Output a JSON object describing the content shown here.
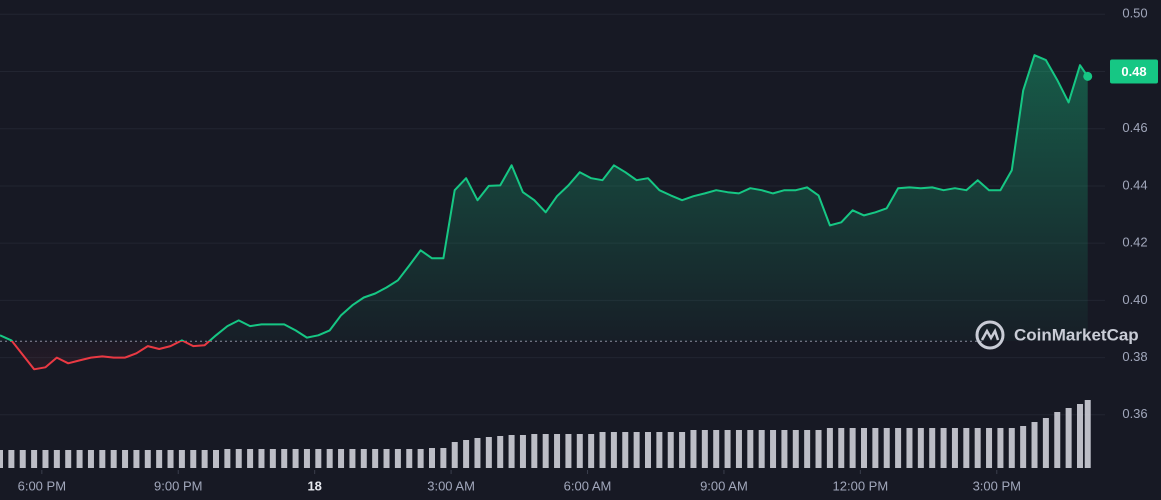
{
  "chart_data": {
    "type": "line",
    "x": [
      17.08,
      17.33,
      17.58,
      17.83,
      18.08,
      18.33,
      18.58,
      18.83,
      19.08,
      19.33,
      19.58,
      19.83,
      20.08,
      20.33,
      20.58,
      20.83,
      21.08,
      21.33,
      21.58,
      21.83,
      22.08,
      22.33,
      22.58,
      22.83,
      23.08,
      23.33,
      23.58,
      23.83,
      24.08,
      24.33,
      24.58,
      24.83,
      25.08,
      25.33,
      25.58,
      25.83,
      26.08,
      26.33,
      26.58,
      26.83,
      27.08,
      27.33,
      27.58,
      27.83,
      28.08,
      28.33,
      28.58,
      28.83,
      29.08,
      29.33,
      29.58,
      29.83,
      30.08,
      30.33,
      30.58,
      30.83,
      31.08,
      31.33,
      31.58,
      31.83,
      32.08,
      32.33,
      32.58,
      32.83,
      33.08,
      33.33,
      33.58,
      33.83,
      34.08,
      34.33,
      34.58,
      34.83,
      35.08,
      35.33,
      35.58,
      35.83,
      36.08,
      36.33,
      36.58,
      36.83,
      37.08,
      37.33,
      37.58,
      37.83,
      38.08,
      38.33,
      38.58,
      38.83,
      39.08,
      39.33,
      39.58,
      39.83,
      40.08,
      40.33,
      40.58,
      40.83,
      41.0
    ],
    "series": [
      {
        "name": "Price",
        "color": "#16c784",
        "color_below": "#ea3943",
        "values": [
          0.3878,
          0.386,
          0.381,
          0.3759,
          0.3766,
          0.38,
          0.378,
          0.379,
          0.38,
          0.3804,
          0.38,
          0.38,
          0.3815,
          0.384,
          0.383,
          0.384,
          0.386,
          0.384,
          0.3843,
          0.3878,
          0.391,
          0.393,
          0.391,
          0.3916,
          0.3916,
          0.3916,
          0.3895,
          0.387,
          0.3878,
          0.3895,
          0.3948,
          0.3983,
          0.401,
          0.4024,
          0.4045,
          0.407,
          0.4122,
          0.4175,
          0.4147,
          0.4147,
          0.4385,
          0.4427,
          0.435,
          0.44,
          0.4402,
          0.4472,
          0.4378,
          0.435,
          0.4308,
          0.4364,
          0.4402,
          0.4448,
          0.4427,
          0.442,
          0.4472,
          0.4448,
          0.442,
          0.4427,
          0.4385,
          0.4367,
          0.435,
          0.4364,
          0.4374,
          0.4385,
          0.4378,
          0.4374,
          0.4392,
          0.4385,
          0.4374,
          0.4385,
          0.4385,
          0.4395,
          0.4367,
          0.4262,
          0.4273,
          0.4315,
          0.4297,
          0.4308,
          0.4322,
          0.4392,
          0.4395,
          0.4392,
          0.4395,
          0.4385,
          0.4392,
          0.4385,
          0.442,
          0.4385,
          0.4385,
          0.4455,
          0.4734,
          0.4857,
          0.484,
          0.477,
          0.4692,
          0.4822,
          0.4783
        ]
      },
      {
        "name": "Volume",
        "color": "#d9dbe3",
        "values": [
          18,
          18,
          18,
          18,
          18,
          18,
          18,
          18,
          18,
          18,
          18,
          18,
          18,
          18,
          18,
          18,
          18,
          18,
          18,
          18,
          19,
          19,
          19,
          19,
          19,
          19,
          19,
          19,
          19,
          19,
          19,
          19,
          19,
          19,
          19,
          19,
          19,
          19,
          20,
          20,
          26,
          28,
          30,
          31,
          32,
          33,
          33,
          34,
          34,
          34,
          34,
          34,
          34,
          36,
          36,
          36,
          36,
          36,
          36,
          36,
          36,
          38,
          38,
          38,
          38,
          38,
          38,
          38,
          38,
          38,
          38,
          38,
          38,
          40,
          40,
          40,
          40,
          40,
          40,
          40,
          40,
          40,
          40,
          40,
          40,
          40,
          40,
          40,
          40,
          40,
          42,
          46,
          50,
          56,
          60,
          64,
          68
        ]
      }
    ],
    "baseline": 0.3857,
    "price_tag": {
      "value": 0.48,
      "label": "0.48"
    },
    "xlim": [
      17.08,
      41.16
    ],
    "xticks": [
      {
        "value": 18,
        "label": "6:00 PM"
      },
      {
        "value": 21,
        "label": "9:00 PM"
      },
      {
        "value": 24,
        "label": "18"
      },
      {
        "value": 27,
        "label": "3:00 AM"
      },
      {
        "value": 30,
        "label": "6:00 AM"
      },
      {
        "value": 33,
        "label": "9:00 AM"
      },
      {
        "value": 36,
        "label": "12:00 PM"
      },
      {
        "value": 39,
        "label": "3:00 PM"
      }
    ],
    "ylim": [
      0.34,
      0.505
    ],
    "yticks": [
      0.36,
      0.38,
      {
        "value": 0.4,
        "label": "0.40"
      },
      0.42,
      0.44,
      0.46,
      0.48,
      {
        "value": 0.5,
        "label": "0.50"
      }
    ],
    "grid": true,
    "watermark": "CoinMarketCap"
  }
}
